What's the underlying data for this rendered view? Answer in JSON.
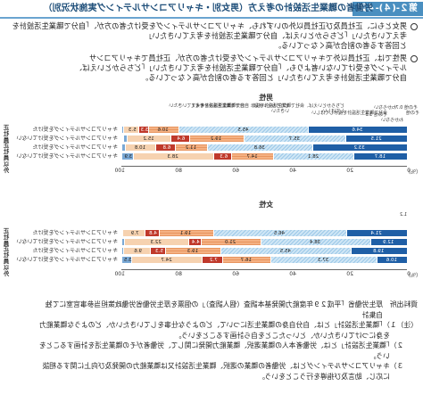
{
  "header": {
    "fig_label": "第２-(４)-４図",
    "title": "労働者の職業生活設計の考え方（男女別・キャリアコンサルティング実施状況別）"
  },
  "bullets": [
    [
      "男女ともに、正社員及び正社員以外のいずれも、キャリアコンサルティングを受けた者の方が、「自分で職業生活設計を考えていきたい」「どちらかといえば、自分で職業生活設計を考えていきたい」",
      "と回答する者の割合が高くなっている。"
    ],
    [
      "男性では、正社員以外でキャリアコンサルティングを受けた者の方が、正社員でキャリアコンサ",
      "ルティングを受けていない者よりも、「自分で職業生活設計を考えていきたい」「どちらかといえば、",
      "自分で職業生活設計を考えていきたい」と回答する者の割合が高くなっている。"
    ]
  ],
  "chart": {
    "unit": "（％）",
    "ticks": [
      "0",
      "20",
      "40",
      "60",
      "80",
      "100"
    ],
    "legend": [
      "自分で職業生活設計を考えていきたい",
      "どちらかといえば、自分で職業生活設計を考えていきたい",
      "どちらかといえば、会社で職業生活設計を提示してほしい",
      "会社で職業生活設計を提示してほしい",
      "わからない",
      "その他"
    ],
    "groups": [
      "正社員",
      "正社員以外"
    ],
    "rows": [
      "キャリアコンサルティングを受けた",
      "キャリアコンサルティングを受けていない"
    ],
    "callouts": [
      "その他 0.7",
      "わからない",
      "その他 1.2",
      "1.2"
    ]
  },
  "chart_data": [
    {
      "type": "bar",
      "title": "男性",
      "categories": [
        "正社員・受けた",
        "正社員・受けていない",
        "正社員以外・受けた",
        "正社員以外・受けていない"
      ],
      "series": [
        {
          "name": "自分で職業生活設計を考えていきたい",
          "values": [
            34.6,
            21.5,
            33.2,
            18.7
          ]
        },
        {
          "name": "どちらかといえば、自分で職業生活設計を考えていきたい",
          "values": [
            45.5,
            35.7,
            36.8,
            28.1
          ]
        },
        {
          "name": "どちらかといえば、会社で職業生活設計を提示してほしい",
          "values": [
            10.6,
            19.2,
            11.2,
            14.7
          ]
        },
        {
          "name": "会社で職業生活設計を提示してほしい",
          "values": [
            3.3,
            6.4,
            6.8,
            6.3
          ]
        },
        {
          "name": "わからない",
          "values": [
            5.3,
            15.2,
            10.8,
            28.3
          ]
        },
        {
          "name": "その他",
          "values": [
            0.7,
            1.5,
            1.2,
            3.9
          ]
        }
      ]
    },
    {
      "type": "bar",
      "title": "女性",
      "categories": [
        "正社員・受けた",
        "正社員・受けていない",
        "正社員以外・受けた",
        "正社員以外・受けていない"
      ],
      "series": [
        {
          "name": "自分で職業生活設計を考えていきたい",
          "values": [
            21.4,
            12.9,
            19.8,
            10.6
          ]
        },
        {
          "name": "どちらかといえば、自分で職業生活設計を考えていきたい",
          "values": [
            46.5,
            38.4,
            45.5,
            37.3
          ]
        },
        {
          "name": "どちらかといえば、会社で職業生活設計を提示してほしい",
          "values": [
            19.1,
            21.0,
            19.3,
            16.7
          ]
        },
        {
          "name": "会社で職業生活設計を提示してほしい",
          "values": [
            4.8,
            4.4,
            5.3,
            7.2
          ]
        },
        {
          "name": "わからない",
          "values": [
            7.9,
            22.3,
            9.6,
            24.7
          ]
        },
        {
          "name": "その他",
          "values": [
            0.3,
            1.0,
            0.5,
            3.5
          ]
        }
      ]
    }
  ],
  "notes": [
    "資料出所　厚生労働省「平成２９年度能力開発基本調査（個人調査）」の個票を厚生労働省労働政策担当参事官室にて独",
    "　　　　　自集計",
    "（注）１）「職業生活設計」とは、自分自身の職業生活について、どのような仕事をしていきたいか、どのような職業能力",
    "　　　　を身につけていきたいか、といったことを自ら計画することをいう。",
    "　　２）「職業生活設計」とは、労働者本人の職業選択、職業能力開発に関して、労働者がその職業生活を計画することを",
    "　　　　いう。",
    "　　３）キャリアコンサルティングとは、労働者の職業の選択、職業生活設計又は職業能力の開発及び向上に関する相談",
    "　　　　に応じ、助言及び指導を行うことをいう。"
  ]
}
